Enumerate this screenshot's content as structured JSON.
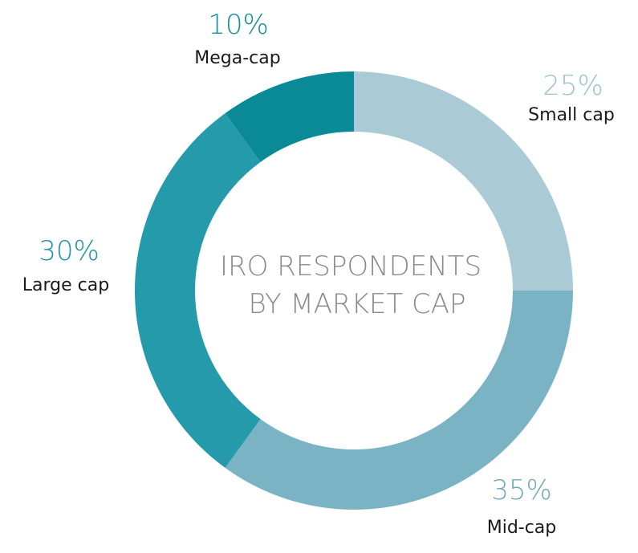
{
  "chart_data": {
    "type": "pie",
    "style": "donut",
    "title": "IRO RESPONDENTS BY MARKET CAP",
    "title_lines": [
      "IRO RESPONDENTS",
      "BY MARKET CAP"
    ],
    "slices": [
      {
        "label": "Small cap",
        "value": 25,
        "value_label": "25%",
        "color": "#aacbd6",
        "label_color": "#9fc3cf"
      },
      {
        "label": "Mid-cap",
        "value": 35,
        "value_label": "35%",
        "color": "#7ab3c4",
        "label_color": "#6fa9bc"
      },
      {
        "label": "Large cap",
        "value": 30,
        "value_label": "30%",
        "color": "#249aab",
        "label_color": "#1f93a5"
      },
      {
        "label": "Mega-cap",
        "value": 10,
        "value_label": "10%",
        "color": "#0a8a96",
        "label_color": "#118f9c"
      }
    ],
    "start_angle_deg": 0,
    "direction": "clockwise"
  }
}
